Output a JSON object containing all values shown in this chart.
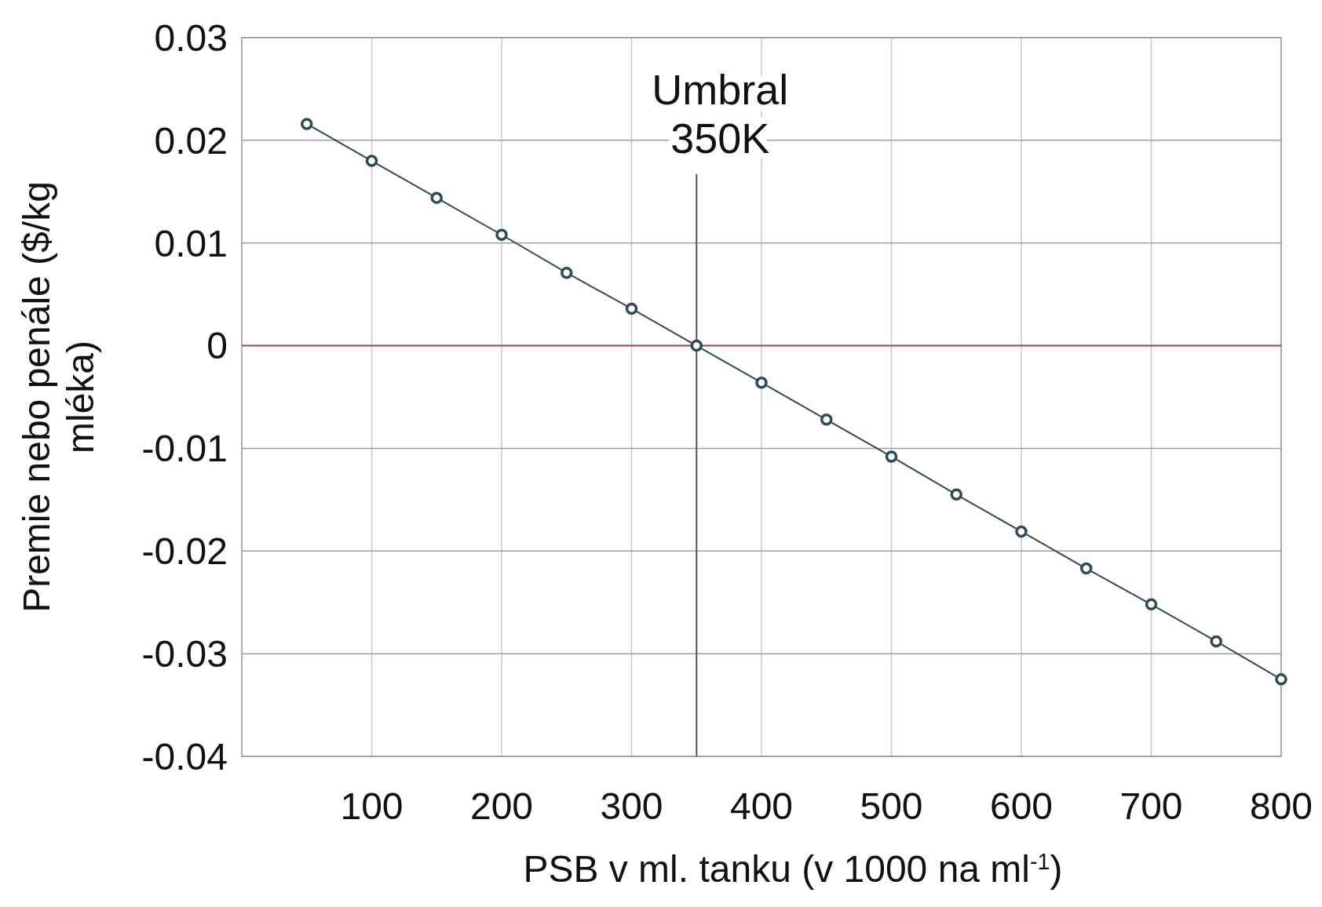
{
  "chart_data": {
    "type": "line",
    "xlabel": "PSB v ml. tanku (v 1000 na ml$^{-1}$)",
    "ylabel": "Premie nebo penále ($/kg mléka)",
    "x": [
      50,
      100,
      150,
      200,
      250,
      300,
      350,
      400,
      450,
      500,
      550,
      600,
      650,
      700,
      750,
      800
    ],
    "series": [
      {
        "color": "#2e4a55",
        "values": [
          0.0216,
          0.018,
          0.0144,
          0.0108,
          0.0071,
          0.0036,
          0,
          -0.0036,
          -0.0072,
          -0.0108,
          -0.0145,
          -0.0181,
          -0.0217,
          -0.0252,
          -0.0288,
          -0.0325
        ]
      }
    ],
    "xlim": [
      0,
      800
    ],
    "xticks": [
      100,
      200,
      300,
      400,
      500,
      600,
      700,
      800
    ],
    "ylim": [
      -0.04,
      0.03
    ],
    "yticks": [
      -0.04,
      -0.03,
      -0.02,
      -0.01,
      0,
      0.01,
      0.02,
      0.03
    ],
    "ref_lines": [
      {
        "axis": "y",
        "value": 0,
        "color": "#a0524a"
      },
      {
        "axis": "x",
        "value": 350,
        "label": "Umbral 350K",
        "color": "#555555"
      }
    ],
    "grid": true,
    "marker": "circle",
    "line_style": "solid"
  }
}
